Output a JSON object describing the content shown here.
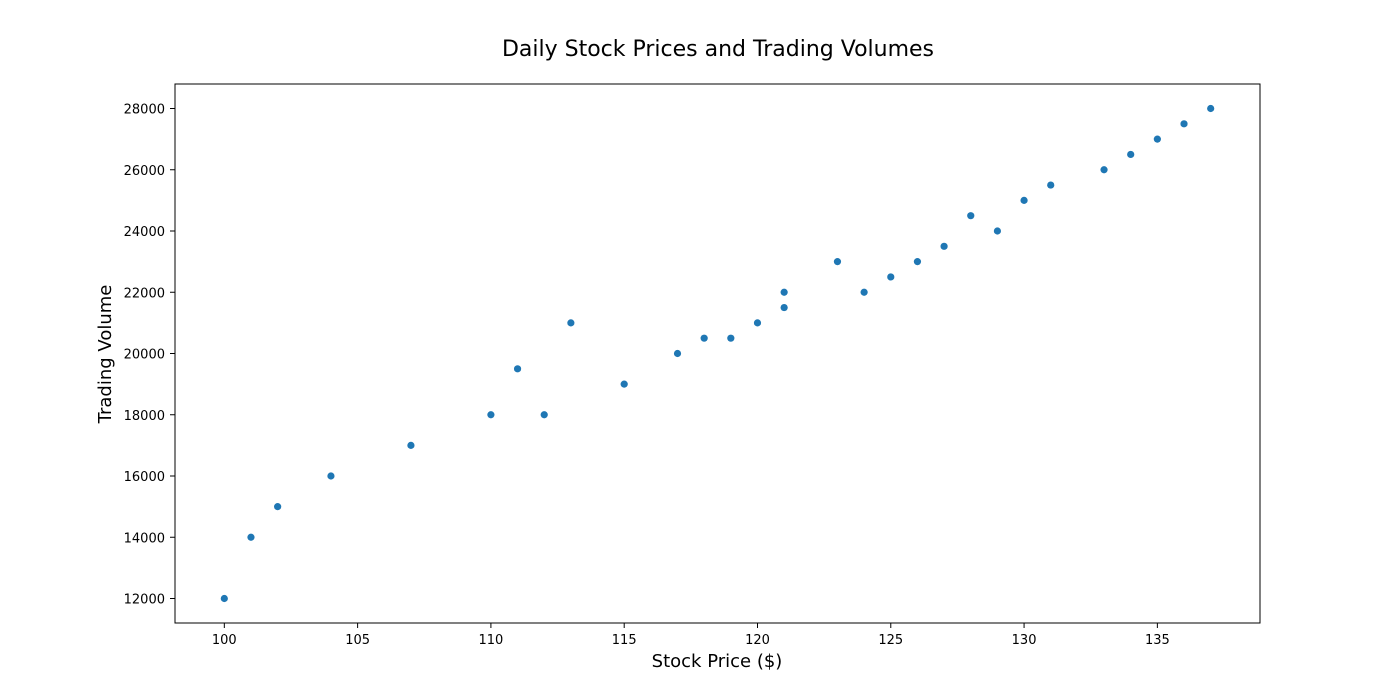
{
  "chart_data": {
    "type": "scatter",
    "title": "Daily Stock Prices and Trading Volumes",
    "xlabel": "Stock Price ($)",
    "ylabel": "Trading Volume",
    "xlim": [
      98.15,
      138.85
    ],
    "ylim": [
      11200,
      28800
    ],
    "xticks": [
      100,
      105,
      110,
      115,
      120,
      125,
      130,
      135
    ],
    "yticks": [
      12000,
      14000,
      16000,
      18000,
      20000,
      22000,
      24000,
      26000,
      28000
    ],
    "grid": false,
    "marker_color": "#1f77b4",
    "points": [
      {
        "x": 100,
        "y": 12000
      },
      {
        "x": 101,
        "y": 14000
      },
      {
        "x": 102,
        "y": 15000
      },
      {
        "x": 104,
        "y": 16000
      },
      {
        "x": 107,
        "y": 17000
      },
      {
        "x": 110,
        "y": 18000
      },
      {
        "x": 111,
        "y": 19500
      },
      {
        "x": 112,
        "y": 18000
      },
      {
        "x": 113,
        "y": 21000
      },
      {
        "x": 115,
        "y": 19000
      },
      {
        "x": 117,
        "y": 20000
      },
      {
        "x": 118,
        "y": 20500
      },
      {
        "x": 119,
        "y": 20500
      },
      {
        "x": 120,
        "y": 21000
      },
      {
        "x": 121,
        "y": 21500
      },
      {
        "x": 121,
        "y": 22000
      },
      {
        "x": 123,
        "y": 23000
      },
      {
        "x": 124,
        "y": 22000
      },
      {
        "x": 125,
        "y": 22500
      },
      {
        "x": 126,
        "y": 23000
      },
      {
        "x": 127,
        "y": 23500
      },
      {
        "x": 128,
        "y": 24500
      },
      {
        "x": 129,
        "y": 24000
      },
      {
        "x": 130,
        "y": 25000
      },
      {
        "x": 131,
        "y": 25500
      },
      {
        "x": 133,
        "y": 26000
      },
      {
        "x": 134,
        "y": 26500
      },
      {
        "x": 135,
        "y": 27000
      },
      {
        "x": 136,
        "y": 27500
      },
      {
        "x": 137,
        "y": 28000
      }
    ]
  }
}
